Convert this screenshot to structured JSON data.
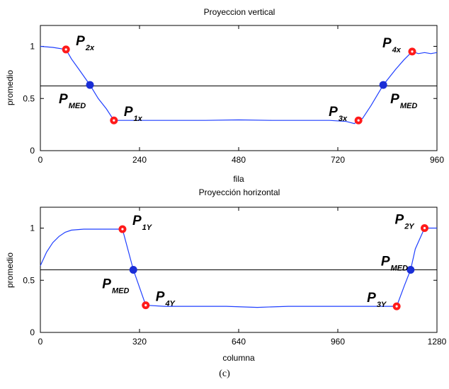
{
  "caption": "(c)",
  "colors": {
    "line": "#1f3fff",
    "point_red": "#ff1a1a",
    "point_blue": "#1a2ed6",
    "refline": "#000000"
  },
  "chart_data": [
    {
      "type": "line",
      "title": "Proyeccion vertical",
      "xlabel": "fila",
      "ylabel": "promedio",
      "xlim": [
        0,
        960
      ],
      "ylim": [
        0,
        1.2
      ],
      "xticks": [
        0,
        240,
        480,
        720,
        960
      ],
      "yticks": [
        0,
        0.5,
        1
      ],
      "ytick_labels": [
        "0",
        "0.5",
        "1"
      ],
      "grid": false,
      "reference_y": 0.62,
      "series": [
        {
          "x": [
            0,
            30,
            62,
            75,
            95,
            120,
            140,
            160,
            178,
            200,
            300,
            400,
            480,
            560,
            640,
            700,
            740,
            760,
            770,
            780,
            800,
            830,
            860,
            880,
            900,
            915,
            930,
            945,
            960
          ],
          "y": [
            1.0,
            0.99,
            0.97,
            0.88,
            0.77,
            0.63,
            0.5,
            0.4,
            0.29,
            0.29,
            0.29,
            0.29,
            0.295,
            0.29,
            0.29,
            0.29,
            0.28,
            0.26,
            0.29,
            0.31,
            0.43,
            0.63,
            0.78,
            0.87,
            0.95,
            0.93,
            0.94,
            0.93,
            0.94
          ]
        }
      ],
      "points": [
        {
          "x": 62,
          "y": 0.97,
          "kind": "red",
          "label": "P",
          "sub": "2x",
          "pos": "ur"
        },
        {
          "x": 120,
          "y": 0.63,
          "kind": "blue",
          "label": "P",
          "sub": "MED",
          "pos": "bl"
        },
        {
          "x": 178,
          "y": 0.29,
          "kind": "red",
          "label": "P",
          "sub": "1x",
          "pos": "ur"
        },
        {
          "x": 770,
          "y": 0.29,
          "kind": "red",
          "label": "P",
          "sub": "3x",
          "pos": "ul"
        },
        {
          "x": 830,
          "y": 0.63,
          "kind": "blue",
          "label": "P",
          "sub": "MED",
          "pos": "br"
        },
        {
          "x": 900,
          "y": 0.95,
          "kind": "red",
          "label": "P",
          "sub": "4x",
          "pos": "ul"
        }
      ]
    },
    {
      "type": "line",
      "title": "Proyección horizontal",
      "xlabel": "columna",
      "ylabel": "promedio",
      "xlim": [
        0,
        1280
      ],
      "ylim": [
        0,
        1.2
      ],
      "xticks": [
        0,
        320,
        640,
        960,
        1280
      ],
      "yticks": [
        0,
        0.5,
        1
      ],
      "ytick_labels": [
        "0",
        "0.5",
        "1"
      ],
      "grid": false,
      "reference_y": 0.6,
      "series": [
        {
          "x": [
            0,
            20,
            40,
            60,
            80,
            100,
            140,
            180,
            220,
            265,
            300,
            340,
            400,
            500,
            600,
            700,
            800,
            900,
            1000,
            1100,
            1150,
            1175,
            1195,
            1210,
            1240,
            1280
          ],
          "y": [
            0.64,
            0.77,
            0.86,
            0.92,
            0.96,
            0.98,
            0.99,
            0.99,
            0.99,
            0.99,
            0.6,
            0.26,
            0.25,
            0.25,
            0.25,
            0.24,
            0.25,
            0.25,
            0.25,
            0.25,
            0.25,
            0.45,
            0.6,
            0.8,
            1.0,
            1.0
          ]
        }
      ],
      "points": [
        {
          "x": 265,
          "y": 0.99,
          "kind": "red",
          "label": "P",
          "sub": "1Y",
          "pos": "ur"
        },
        {
          "x": 300,
          "y": 0.6,
          "kind": "blue",
          "label": "P",
          "sub": "MED",
          "pos": "bl"
        },
        {
          "x": 340,
          "y": 0.26,
          "kind": "red",
          "label": "P",
          "sub": "4Y",
          "pos": "ur"
        },
        {
          "x": 1150,
          "y": 0.25,
          "kind": "red",
          "label": "P",
          "sub": "3Y",
          "pos": "ul"
        },
        {
          "x": 1195,
          "y": 0.6,
          "kind": "blue",
          "label": "P",
          "sub": "MED",
          "pos": "ul"
        },
        {
          "x": 1240,
          "y": 1.0,
          "kind": "red",
          "label": "P",
          "sub": "2Y",
          "pos": "ul"
        }
      ]
    }
  ]
}
